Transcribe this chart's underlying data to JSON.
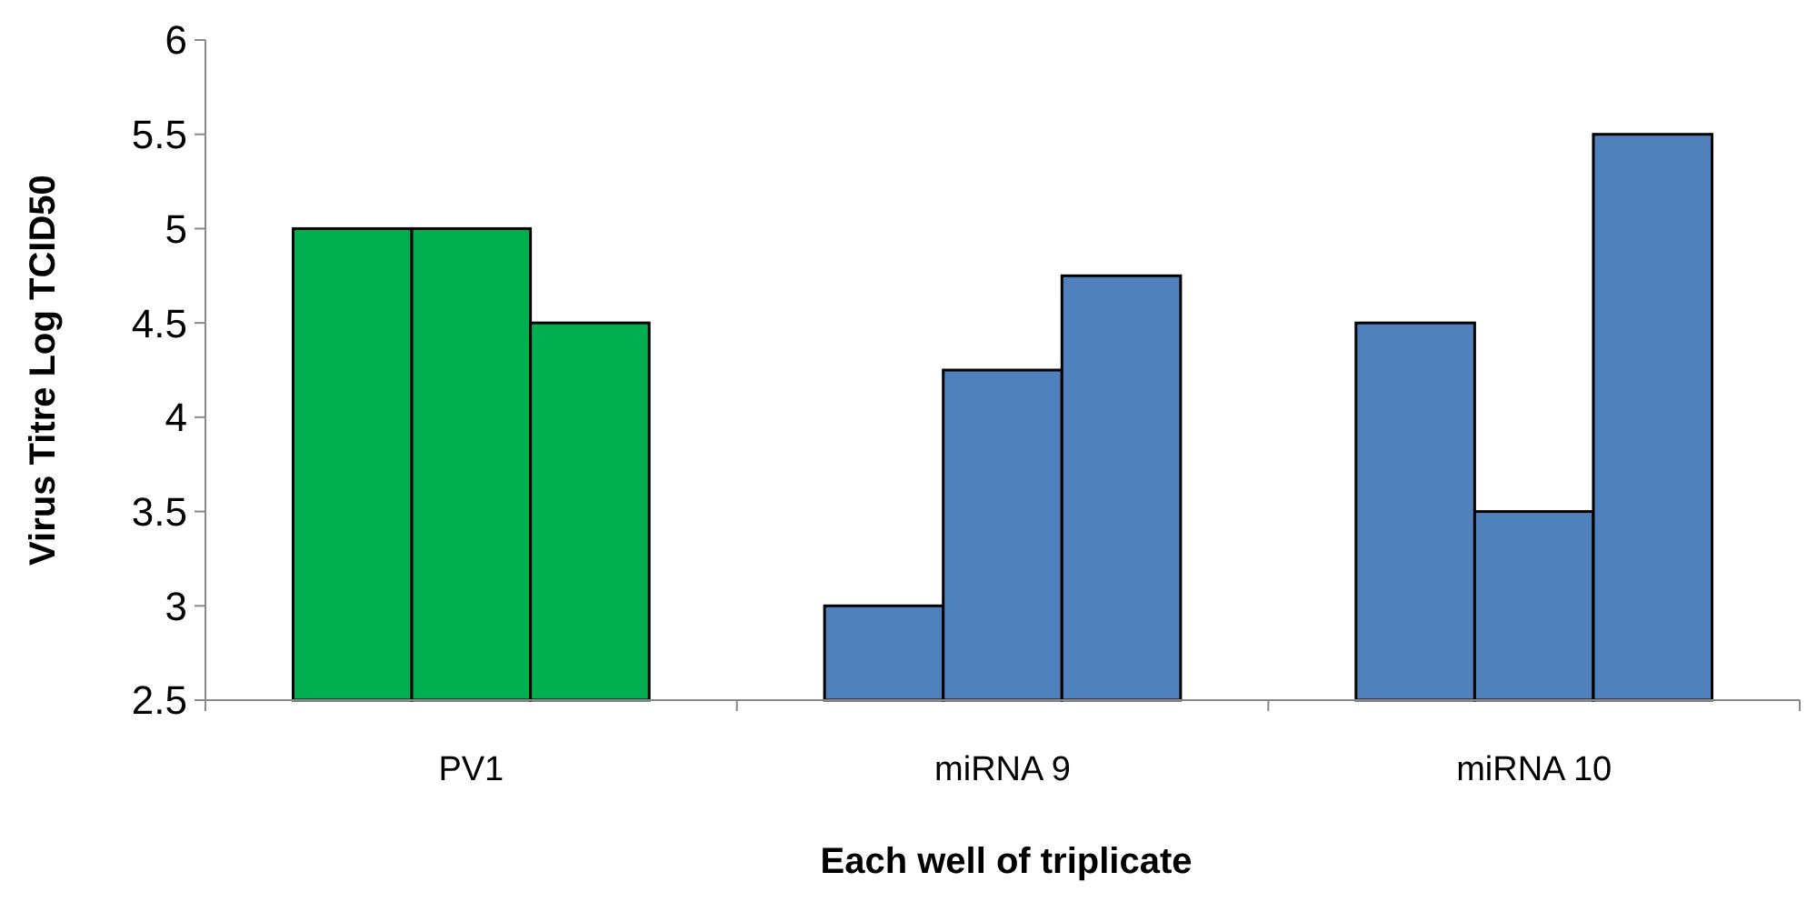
{
  "chart_data": {
    "type": "bar",
    "xlabel": "Each well of triplicate",
    "ylabel": "Virus Titre Log TCID50",
    "categories": [
      "PV1",
      "miRNA 9",
      "miRNA 10"
    ],
    "series": [
      {
        "colors": [
          "#00b050",
          "#4f81bd",
          "#4f81bd"
        ],
        "values": [
          5,
          3,
          4.5
        ]
      },
      {
        "colors": [
          "#00b050",
          "#4f81bd",
          "#4f81bd"
        ],
        "values": [
          5,
          4.25,
          3.5
        ]
      },
      {
        "colors": [
          "#00b050",
          "#4f81bd",
          "#4f81bd"
        ],
        "values": [
          4.5,
          4.75,
          5.5
        ]
      }
    ],
    "ylim": [
      2.5,
      6
    ],
    "yticks": [
      2.5,
      3,
      3.5,
      4,
      4.5,
      5,
      5.5,
      6
    ]
  }
}
